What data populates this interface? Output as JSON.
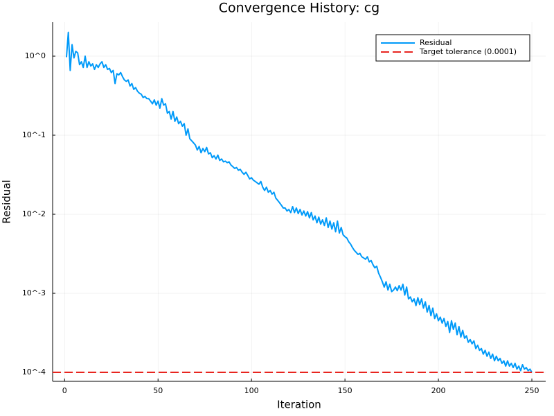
{
  "chart_data": {
    "type": "line",
    "title": "Convergence History: cg",
    "x_label": "Iteration",
    "y_label": "Residual",
    "log_y": true,
    "grid": true,
    "legend_position": "top-right",
    "xlim": [
      -6.4,
      257.4
    ],
    "xticks": [
      0,
      50,
      100,
      150,
      200,
      250
    ],
    "ylim": [
      7.7e-05,
      2.69
    ],
    "yticks": [
      {
        "value": 0.0001,
        "label": "10^-4"
      },
      {
        "value": 0.001,
        "label": "10^-3"
      },
      {
        "value": 0.01,
        "label": "10^-2"
      },
      {
        "value": 0.1,
        "label": "10^-1"
      },
      {
        "value": 1,
        "label": "10^0"
      }
    ],
    "reference_line": {
      "name": "Target tolerance (0.0001)",
      "value": 0.0001,
      "color": "#e8251f",
      "style": "dashed"
    },
    "series": [
      {
        "name": "Residual",
        "color": "#009af9",
        "x": [
          1,
          2,
          3,
          4,
          5,
          6,
          7,
          8,
          9,
          10,
          11,
          12,
          13,
          14,
          15,
          16,
          17,
          18,
          19,
          20,
          21,
          22,
          23,
          24,
          25,
          26,
          27,
          28,
          29,
          30,
          31,
          32,
          33,
          34,
          35,
          36,
          37,
          38,
          39,
          40,
          41,
          42,
          43,
          44,
          45,
          46,
          47,
          48,
          49,
          50,
          51,
          52,
          53,
          54,
          55,
          56,
          57,
          58,
          59,
          60,
          61,
          62,
          63,
          64,
          65,
          66,
          67,
          68,
          69,
          70,
          71,
          72,
          73,
          74,
          75,
          76,
          77,
          78,
          79,
          80,
          81,
          82,
          83,
          84,
          85,
          86,
          87,
          88,
          89,
          90,
          91,
          92,
          93,
          94,
          95,
          96,
          97,
          98,
          99,
          100,
          101,
          102,
          103,
          104,
          105,
          106,
          107,
          108,
          109,
          110,
          111,
          112,
          113,
          114,
          115,
          116,
          117,
          118,
          119,
          120,
          121,
          122,
          123,
          124,
          125,
          126,
          127,
          128,
          129,
          130,
          131,
          132,
          133,
          134,
          135,
          136,
          137,
          138,
          139,
          140,
          141,
          142,
          143,
          144,
          145,
          146,
          147,
          148,
          149,
          150,
          151,
          152,
          153,
          154,
          155,
          156,
          157,
          158,
          159,
          160,
          161,
          162,
          163,
          164,
          165,
          166,
          167,
          168,
          169,
          170,
          171,
          172,
          173,
          174,
          175,
          176,
          177,
          178,
          179,
          180,
          181,
          182,
          183,
          184,
          185,
          186,
          187,
          188,
          189,
          190,
          191,
          192,
          193,
          194,
          195,
          196,
          197,
          198,
          199,
          200,
          201,
          202,
          203,
          204,
          205,
          206,
          207,
          208,
          209,
          210,
          211,
          212,
          213,
          214,
          215,
          216,
          217,
          218,
          219,
          220,
          221,
          222,
          223,
          224,
          225,
          226,
          227,
          228,
          229,
          230,
          231,
          232,
          233,
          234,
          235,
          236,
          237,
          238,
          239,
          240,
          241,
          242,
          243,
          244,
          245,
          246,
          247,
          248,
          249,
          250
        ],
        "values": [
          0.97,
          2.0,
          0.66,
          1.4,
          0.95,
          1.15,
          1.1,
          0.78,
          0.85,
          0.72,
          1.0,
          0.72,
          0.85,
          0.75,
          0.8,
          0.68,
          0.78,
          0.72,
          0.8,
          0.85,
          0.72,
          0.78,
          0.68,
          0.7,
          0.62,
          0.66,
          0.45,
          0.6,
          0.58,
          0.62,
          0.55,
          0.5,
          0.48,
          0.5,
          0.42,
          0.45,
          0.38,
          0.4,
          0.36,
          0.34,
          0.33,
          0.3,
          0.31,
          0.29,
          0.29,
          0.27,
          0.25,
          0.28,
          0.24,
          0.27,
          0.22,
          0.29,
          0.24,
          0.25,
          0.19,
          0.2,
          0.16,
          0.2,
          0.15,
          0.17,
          0.14,
          0.15,
          0.13,
          0.14,
          0.1,
          0.12,
          0.09,
          0.085,
          0.08,
          0.075,
          0.065,
          0.072,
          0.06,
          0.068,
          0.062,
          0.07,
          0.058,
          0.06,
          0.052,
          0.055,
          0.05,
          0.056,
          0.048,
          0.05,
          0.046,
          0.047,
          0.045,
          0.046,
          0.042,
          0.04,
          0.038,
          0.039,
          0.036,
          0.037,
          0.034,
          0.032,
          0.034,
          0.031,
          0.028,
          0.029,
          0.027,
          0.026,
          0.025,
          0.024,
          0.026,
          0.022,
          0.02,
          0.022,
          0.019,
          0.02,
          0.018,
          0.019,
          0.016,
          0.015,
          0.014,
          0.013,
          0.012,
          0.012,
          0.011,
          0.0115,
          0.0105,
          0.0125,
          0.0105,
          0.012,
          0.0102,
          0.0115,
          0.0098,
          0.011,
          0.0095,
          0.0108,
          0.009,
          0.0105,
          0.0085,
          0.0095,
          0.0078,
          0.0092,
          0.0075,
          0.0085,
          0.0072,
          0.009,
          0.0068,
          0.0082,
          0.0065,
          0.0078,
          0.006,
          0.0082,
          0.0058,
          0.0068,
          0.0055,
          0.0052,
          0.005,
          0.0045,
          0.0042,
          0.0038,
          0.0035,
          0.0033,
          0.0031,
          0.0032,
          0.0029,
          0.0028,
          0.0027,
          0.0029,
          0.0025,
          0.0026,
          0.0023,
          0.0021,
          0.0022,
          0.0018,
          0.0016,
          0.0014,
          0.0012,
          0.0014,
          0.0011,
          0.0013,
          0.00105,
          0.0011,
          0.0012,
          0.00108,
          0.00125,
          0.0011,
          0.0013,
          0.00095,
          0.0012,
          0.00085,
          0.0009,
          0.00078,
          0.00085,
          0.0007,
          0.00088,
          0.00072,
          0.00085,
          0.00065,
          0.00078,
          0.00058,
          0.0007,
          0.00052,
          0.00065,
          0.00048,
          0.00055,
          0.00045,
          0.0005,
          0.00042,
          0.00048,
          0.00038,
          0.00044,
          0.00032,
          0.00045,
          0.00035,
          0.00042,
          0.0003,
          0.00038,
          0.00028,
          0.00034,
          0.00027,
          0.00029,
          0.00024,
          0.00026,
          0.00023,
          0.00025,
          0.0002,
          0.00022,
          0.00019,
          0.0002,
          0.00017,
          0.00019,
          0.00016,
          0.00018,
          0.00015,
          0.00017,
          0.00014,
          0.00016,
          0.00014,
          0.00015,
          0.00013,
          0.00014,
          0.00012,
          0.00014,
          0.00012,
          0.00013,
          0.000115,
          0.00013,
          0.00011,
          0.00012,
          0.000105,
          0.000125,
          0.00011,
          0.000115,
          0.000105,
          0.00011,
          0.0001
        ]
      }
    ]
  }
}
